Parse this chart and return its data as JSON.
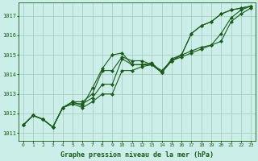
{
  "bg_color": "#cceee8",
  "grid_color": "#aaccc0",
  "line_color": "#1a5c1a",
  "ylabel_ticks": [
    1011,
    1012,
    1013,
    1014,
    1015,
    1016,
    1017
  ],
  "ylim": [
    1010.6,
    1017.7
  ],
  "xlim": [
    -0.5,
    23.5
  ],
  "xlabel": "Graphe pression niveau de la mer (hPa)",
  "series1": [
    1011.4,
    1011.9,
    1011.7,
    1011.3,
    1012.3,
    1012.6,
    1012.4,
    1013.3,
    1014.3,
    1015.0,
    1015.1,
    1014.5,
    1014.5,
    1014.6,
    1014.1,
    1014.8,
    1015.0,
    1016.1,
    1016.5,
    1016.7,
    1017.1,
    1017.3,
    1017.4,
    1017.5
  ],
  "series2": [
    1011.4,
    1011.9,
    1011.7,
    1011.3,
    1012.3,
    1012.6,
    1012.6,
    1013.0,
    1014.2,
    1014.2,
    1014.9,
    1014.7,
    1014.7,
    1014.5,
    1014.1,
    1014.7,
    1015.0,
    1016.1,
    1016.5,
    1016.7,
    1017.1,
    1017.3,
    1017.4,
    1017.5
  ],
  "series3": [
    1011.4,
    1011.9,
    1011.7,
    1011.3,
    1012.3,
    1012.5,
    1012.5,
    1012.8,
    1013.5,
    1013.5,
    1014.8,
    1014.5,
    1014.5,
    1014.5,
    1014.2,
    1014.7,
    1015.0,
    1015.2,
    1015.4,
    1015.5,
    1016.1,
    1016.9,
    1017.3,
    1017.5
  ],
  "series4": [
    1011.4,
    1011.9,
    1011.7,
    1011.3,
    1012.3,
    1012.5,
    1012.3,
    1012.6,
    1013.0,
    1013.0,
    1014.2,
    1014.2,
    1014.4,
    1014.5,
    1014.1,
    1014.7,
    1014.9,
    1015.1,
    1015.3,
    1015.5,
    1015.7,
    1016.7,
    1017.1,
    1017.4
  ],
  "marker": "D",
  "markersize": 2.0,
  "linewidth": 0.8
}
